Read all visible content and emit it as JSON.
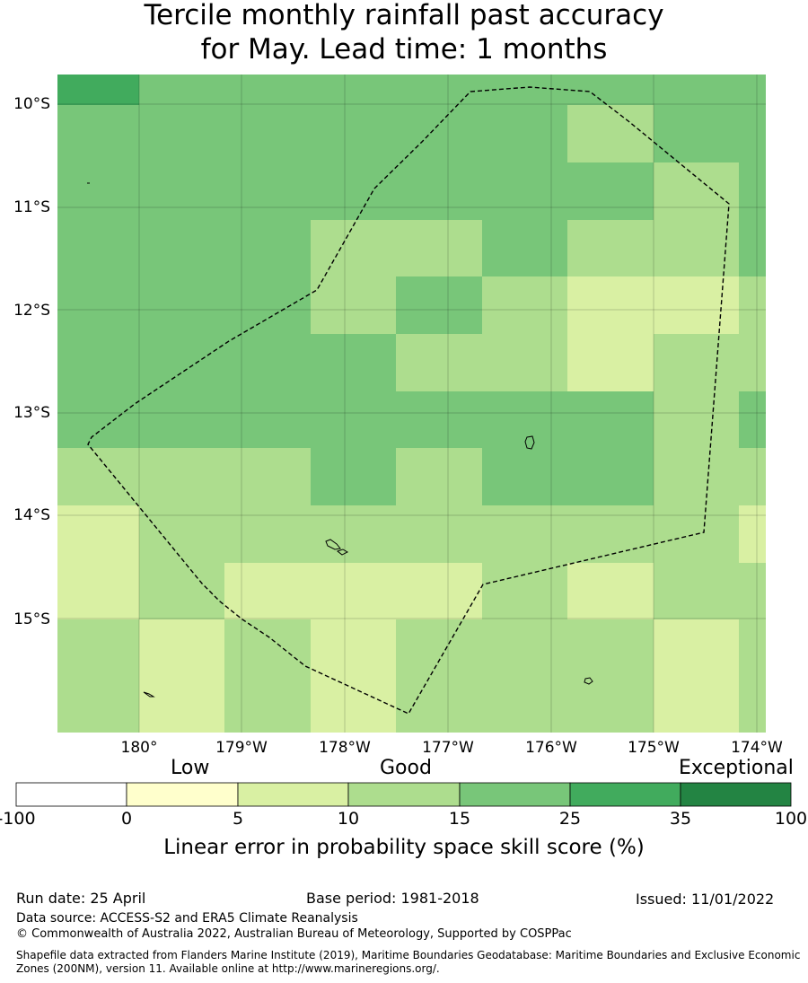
{
  "title": {
    "line1": "Tercile monthly rainfall past accuracy",
    "line2": "for May. Lead time: 1 months"
  },
  "map": {
    "lat_labels": [
      "10°S",
      "11°S",
      "12°S",
      "13°S",
      "14°S",
      "15°S"
    ],
    "lon_labels": [
      "180°",
      "179°W",
      "178°W",
      "177°W",
      "176°W",
      "175°W",
      "174°W"
    ],
    "grid_cells_category_index": [
      [
        5,
        4,
        4,
        4,
        4,
        4,
        4,
        4,
        4
      ],
      [
        4,
        4,
        4,
        4,
        4,
        4,
        3,
        4,
        4
      ],
      [
        4,
        4,
        4,
        4,
        4,
        4,
        4,
        3,
        4
      ],
      [
        4,
        4,
        4,
        3,
        3,
        4,
        3,
        3,
        4
      ],
      [
        4,
        4,
        4,
        3,
        4,
        3,
        2,
        2,
        3
      ],
      [
        4,
        4,
        4,
        4,
        3,
        3,
        2,
        3,
        3
      ],
      [
        4,
        4,
        4,
        4,
        4,
        4,
        4,
        3,
        4
      ],
      [
        3,
        3,
        3,
        4,
        3,
        4,
        4,
        3,
        3
      ],
      [
        2,
        3,
        3,
        3,
        3,
        3,
        3,
        3,
        2
      ],
      [
        2,
        3,
        2,
        2,
        2,
        3,
        2,
        3,
        3
      ],
      [
        3,
        2,
        3,
        2,
        3,
        3,
        3,
        2,
        3
      ]
    ],
    "colors": {
      "cell_border": "#00000022",
      "boundary": "#000000"
    }
  },
  "colorbar": {
    "category_words": [
      "Low",
      "Good",
      "Exceptional"
    ],
    "ticks": [
      "-100",
      "0",
      "5",
      "10",
      "15",
      "25",
      "35",
      "100"
    ],
    "colors": [
      "#ffffff",
      "#ffffcc",
      "#d9f0a3",
      "#addd8e",
      "#78c679",
      "#41ab5d",
      "#238443"
    ],
    "title": "Linear error in probability space skill score (%)"
  },
  "footer": {
    "run_date": "Run date: 25 April",
    "base_period": "Base period: 1981-2018",
    "issued": "Issued: 11/01/2022",
    "data_source": "Data source: ACCESS-S2 and ERA5 Climate Reanalysis",
    "copyright": "© Commonwealth of Australia 2022, Australian Bureau of Meteorology, Supported by COSPPac",
    "shapefile": "Shapefile data extracted from Flanders Marine Institute (2019), Maritime Boundaries Geodatabase: Maritime Boundaries and Exclusive Economic Zones (200NM), version 11. Available online at http://www.marineregions.org/."
  }
}
